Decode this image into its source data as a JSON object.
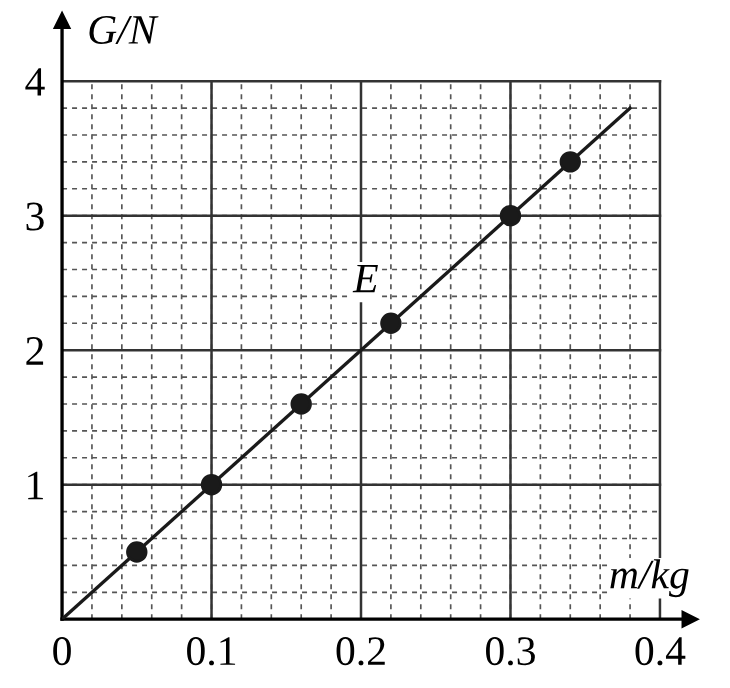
{
  "chart_data": {
    "type": "scatter",
    "xlabel": "m/kg",
    "ylabel": "G/N",
    "x": [
      0.05,
      0.1,
      0.16,
      0.22,
      0.3,
      0.34
    ],
    "series": [
      {
        "color": "#1a1a1a",
        "marker": "circle",
        "values": [
          0.5,
          1.0,
          1.6,
          2.2,
          3.0,
          3.4
        ]
      },
      {
        "type": "line",
        "color": "#1a1a1a",
        "x": [
          0,
          0.38
        ],
        "values": [
          0,
          3.8
        ]
      }
    ],
    "annotations": [
      {
        "text": "E",
        "x": 0.22,
        "y": 2.2
      }
    ],
    "xlim": [
      0,
      0.42
    ],
    "ylim": [
      0,
      4.45
    ],
    "xticks": [
      0,
      0.1,
      0.2,
      0.3,
      0.4
    ],
    "yticks": [
      {
        "value": 0,
        "label": null
      },
      1,
      2,
      3,
      4
    ],
    "grid": true
  }
}
